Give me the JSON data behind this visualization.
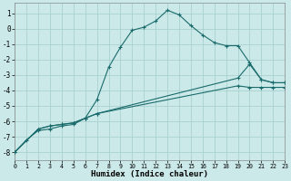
{
  "xlabel": "Humidex (Indice chaleur)",
  "background_color": "#cce9e9",
  "grid_color": "#aad0d0",
  "line_color": "#1a6b6b",
  "xlim": [
    0,
    23
  ],
  "ylim": [
    -8.5,
    1.7
  ],
  "xticks": [
    0,
    1,
    2,
    3,
    4,
    5,
    6,
    7,
    8,
    9,
    10,
    11,
    12,
    13,
    14,
    15,
    16,
    17,
    18,
    19,
    20,
    21,
    22,
    23
  ],
  "yticks": [
    -8,
    -7,
    -6,
    -5,
    -4,
    -3,
    -2,
    -1,
    0,
    1
  ],
  "s1_x": [
    0,
    1,
    2,
    3,
    4,
    5,
    6,
    7,
    8,
    9,
    10,
    11,
    12,
    13,
    14,
    15,
    16,
    17,
    18,
    19,
    20,
    21,
    22,
    23
  ],
  "s1_y": [
    -8.0,
    -7.2,
    -6.6,
    -6.5,
    -6.3,
    -6.2,
    -5.8,
    -4.6,
    -2.5,
    -1.2,
    -0.1,
    0.1,
    0.5,
    1.2,
    0.9,
    0.2,
    -0.4,
    -0.9,
    -1.1,
    -1.1,
    -2.2,
    -3.3,
    -3.5,
    -3.5
  ],
  "s2_x": [
    0,
    2,
    3,
    4,
    5,
    6,
    7,
    19,
    20,
    21,
    22,
    23
  ],
  "s2_y": [
    -8.0,
    -6.5,
    -6.3,
    -6.2,
    -6.1,
    -5.8,
    -5.5,
    -3.2,
    -2.3,
    -3.3,
    -3.5,
    -3.5
  ],
  "s3_x": [
    0,
    2,
    3,
    4,
    5,
    6,
    7,
    19,
    20,
    21,
    22,
    23
  ],
  "s3_y": [
    -8.0,
    -6.5,
    -6.3,
    -6.2,
    -6.1,
    -5.8,
    -5.5,
    -3.7,
    -3.8,
    -3.8,
    -3.8,
    -3.8
  ],
  "figsize": [
    3.2,
    2.0
  ],
  "dpi": 100
}
